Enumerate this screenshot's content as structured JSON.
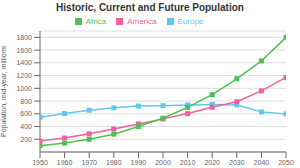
{
  "chart_data": {
    "type": "line",
    "title": "Historic, Current and Future Population",
    "ylabel": "Population, mid-year, millions",
    "x": [
      1950,
      1960,
      1970,
      1980,
      1990,
      2000,
      2010,
      2020,
      2030,
      2040,
      2050
    ],
    "series": [
      {
        "name": "Europe",
        "color": "#60c8f0",
        "values": [
          547,
          604,
          656,
          694,
          721,
          728,
          738,
          747,
          739,
          630,
          598
        ]
      },
      {
        "name": "America",
        "color": "#f060a0",
        "values": [
          172,
          220,
          286,
          361,
          441,
          520,
          603,
          702,
          790,
          960,
          1170
        ]
      },
      {
        "name": "Africa",
        "color": "#50c050",
        "values": [
          100,
          140,
          200,
          280,
          400,
          530,
          700,
          900,
          1150,
          1430,
          1800
        ]
      }
    ],
    "xlim": [
      1950,
      2050
    ],
    "xticks": [
      1950,
      1960,
      1970,
      1980,
      1990,
      2000,
      2010,
      2020,
      2030,
      2040,
      2050
    ],
    "ylim": [
      0,
      1900
    ],
    "yticks": [
      200,
      400,
      600,
      800,
      1000,
      1200,
      1400,
      1600,
      1800
    ],
    "grid": true,
    "legend": "top",
    "marker": "square"
  }
}
